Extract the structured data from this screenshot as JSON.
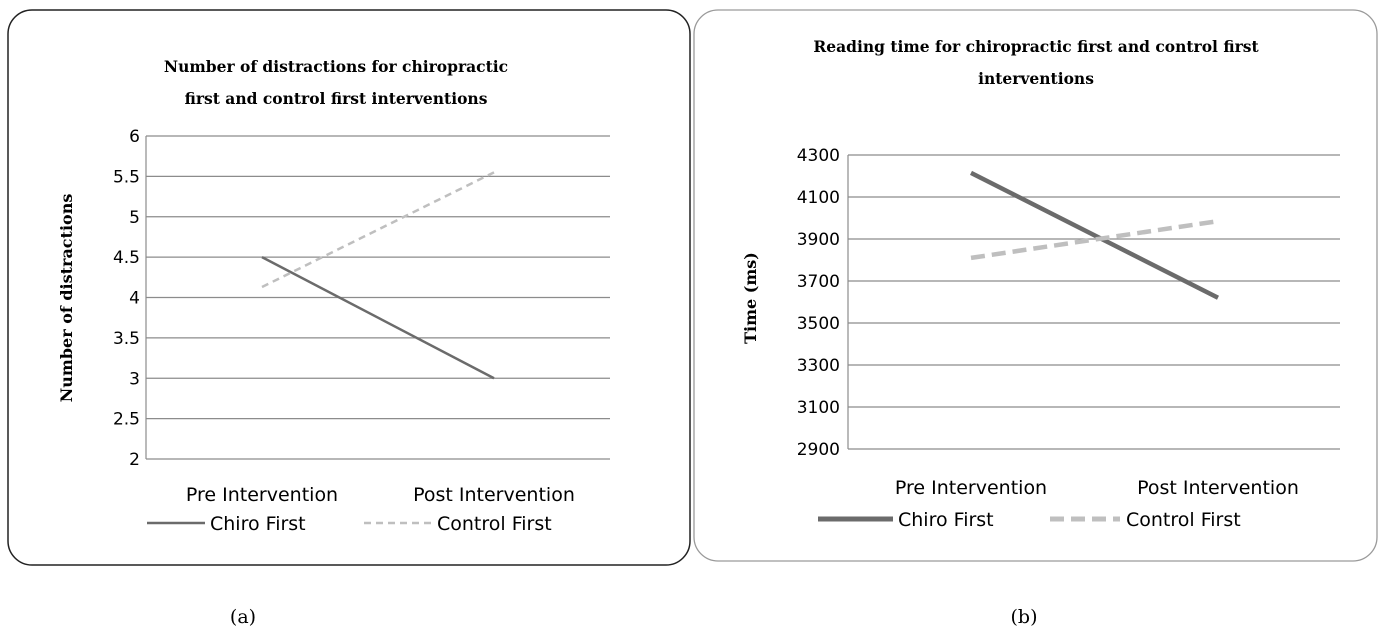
{
  "colors": {
    "chiro": "#6b6b6b",
    "control": "#bfbfbf",
    "grid": "#8c8c8c"
  },
  "chart_data": [
    {
      "type": "line",
      "title_lines": [
        "Number of distractions for chiropractic",
        "first and control first interventions"
      ],
      "ylabel": "Number of distractions",
      "categories": [
        "Pre Intervention",
        "Post Intervention"
      ],
      "ylim": [
        2,
        6
      ],
      "yticks": [
        "2",
        "2.5",
        "3",
        "3.5",
        "4",
        "4.5",
        "5",
        "5.5",
        "6"
      ],
      "legend_position": "bottom",
      "series": [
        {
          "name": "Chiro First",
          "values": [
            4.5,
            3.0
          ],
          "style": "solid"
        },
        {
          "name": "Control First",
          "values": [
            4.13,
            5.55
          ],
          "style": "dashed"
        }
      ],
      "caption": "(a)"
    },
    {
      "type": "line",
      "title_lines": [
        "Reading time for chiropractic first and control first",
        "interventions"
      ],
      "ylabel": "Time (ms)",
      "categories": [
        "Pre Intervention",
        "Post Intervention"
      ],
      "ylim": [
        2900,
        4300
      ],
      "yticks": [
        "2900",
        "3100",
        "3300",
        "3500",
        "3700",
        "3900",
        "4100",
        "4300"
      ],
      "legend_position": "bottom",
      "series": [
        {
          "name": "Chiro First",
          "values": [
            4215,
            3620
          ],
          "style": "solid"
        },
        {
          "name": "Control First",
          "values": [
            3810,
            3985
          ],
          "style": "dashed"
        }
      ],
      "caption": "(b)"
    }
  ]
}
